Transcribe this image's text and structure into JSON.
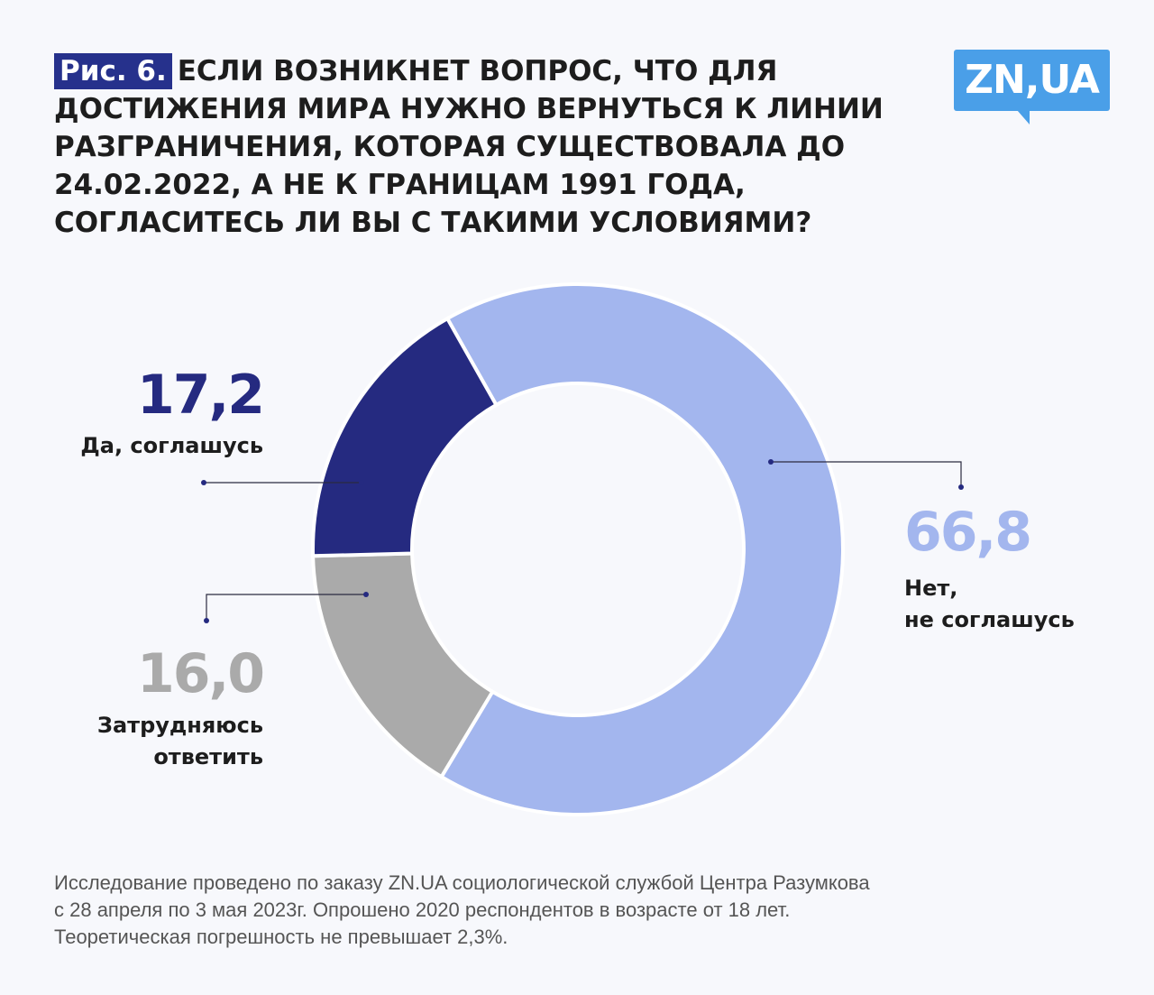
{
  "header": {
    "figure_label": "Рис. 6.",
    "title": "Если возникнет вопрос, что для достижения мира нужно вернуться к линии разграничения, которая существовала до 24.02.2022, а не к границам 1991 года, согласитесь ли вы с такими условиями?"
  },
  "logo": {
    "text": "ZN,UA",
    "color": "#4a9fe8"
  },
  "chart_data": {
    "type": "pie",
    "donut": true,
    "slices": [
      {
        "label": "Нет, не соглашусь",
        "value": 66.8,
        "display": "66,8",
        "color": "#a3b6ee"
      },
      {
        "label": "Затрудняюсь ответить",
        "value": 16.0,
        "display": "16,0",
        "color": "#aaaaaa"
      },
      {
        "label": "Да, соглашусь",
        "value": 17.2,
        "display": "17,2",
        "color": "#252a80"
      }
    ]
  },
  "labels": {
    "yes_value": "17,2",
    "yes_text": "Да, соглашусь",
    "no_value": "66,8",
    "no_line1": "Нет,",
    "no_line2": "не соглашусь",
    "unsure_value": "16,0",
    "unsure_line1": "Затрудняюсь",
    "unsure_line2": "ответить"
  },
  "footnote": {
    "line1": "Исследование проведено по заказу ZN.UA социологической службой Центра Разумкова",
    "line2": "с 28 апреля по 3 мая 2023г. Опрошено 2020 респондентов в возрасте от 18 лет.",
    "line3": "Теоретическая погрешность не превышает 2,3%."
  }
}
